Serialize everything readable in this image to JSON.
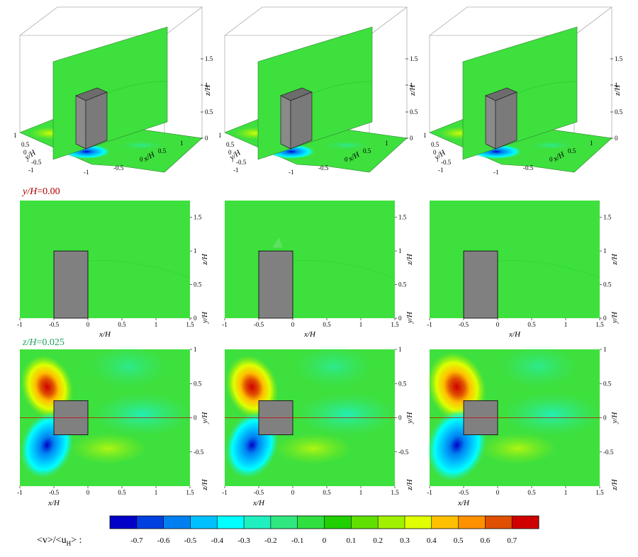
{
  "chart_data": [
    {
      "type": "contour-3d",
      "row": "isometric",
      "x_label": "x/H",
      "y_label": "y/H",
      "z_label": "z/H",
      "x_ticks": [
        "-1",
        "-0.5",
        "0",
        "0.5",
        "1"
      ],
      "y_ticks": [
        "-1",
        "-0.5",
        "0",
        "0.5",
        "1"
      ],
      "z_ticks": [
        "0",
        "0.5",
        "1",
        "1.5"
      ],
      "panels": 3
    },
    {
      "type": "contour",
      "row": "vertical-plane",
      "plane_label_var": "y/H",
      "plane_label_val": "=0.00",
      "x_label": "x/H",
      "y_label": "z/H",
      "corner_label": "y/H",
      "x_ticks": [
        "-1",
        "-0.5",
        "0",
        "0.5",
        "1",
        "1.5"
      ],
      "y_ticks": [
        "0",
        "0.5",
        "1",
        "1.5"
      ],
      "xlim": [
        -1,
        1.5
      ],
      "ylim": [
        0,
        1.75
      ],
      "building": {
        "x": [
          -0.5,
          0
        ],
        "z": [
          0,
          1
        ]
      },
      "panels": 3
    },
    {
      "type": "contour",
      "row": "horizontal-plane",
      "plane_label_var": "z/H",
      "plane_label_val": "=0.025",
      "x_label": "x/H",
      "y_label": "y/H",
      "corner_label": "z/H",
      "x_ticks": [
        "-1",
        "-0.5",
        "0",
        "0.5",
        "1",
        "1.5"
      ],
      "y_ticks": [
        "-0.5",
        "0",
        "0.5",
        "1"
      ],
      "xlim": [
        -1,
        1.5
      ],
      "ylim": [
        -1,
        1
      ],
      "building": {
        "x": [
          -0.5,
          0
        ],
        "y": [
          -0.25,
          0.25
        ]
      },
      "panels": 3
    }
  ],
  "colorbar": {
    "label": "<v>/<u",
    "label_sub": "H",
    "label_tail": "> :",
    "levels": [
      "-0.7",
      "-0.6",
      "-0.5",
      "-0.4",
      "-0.3",
      "-0.2",
      "-0.1",
      "0",
      "0.1",
      "0.2",
      "0.3",
      "0.4",
      "0.5",
      "0.6",
      "0.7"
    ],
    "colors": [
      "#0000c8",
      "#0040e0",
      "#0080f0",
      "#00c0ff",
      "#00ffff",
      "#20f0c0",
      "#30e880",
      "#30e040",
      "#20d000",
      "#60e000",
      "#a0f000",
      "#e0ff00",
      "#ffc000",
      "#ff9000",
      "#e05000",
      "#d00000"
    ]
  },
  "colors": {
    "field": "#3ee03e",
    "building": "#808080",
    "centerline": "#cc0000",
    "plane_label_y": "#aa0000",
    "plane_label_z": "#20a060"
  }
}
